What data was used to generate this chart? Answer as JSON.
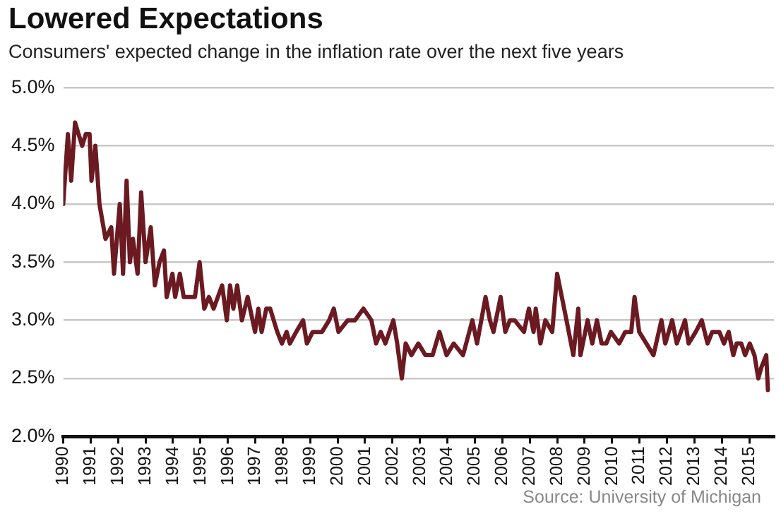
{
  "chart_data": {
    "type": "line",
    "title": "Lowered Expectations",
    "subtitle": "Consumers' expected change in the inflation rate over the next five years",
    "annotations": [
      "Source: University of Michigan"
    ],
    "x": [
      1990,
      1990.17,
      1990.29,
      1990.43,
      1990.69,
      1990.82,
      1990.96,
      1991.03,
      1991.17,
      1991.32,
      1991.54,
      1991.75,
      1991.85,
      1992.06,
      1992.18,
      1992.31,
      1992.43,
      1992.54,
      1992.71,
      1992.84,
      1993.0,
      1993.19,
      1993.34,
      1993.51,
      1993.67,
      1993.77,
      1993.98,
      1994.08,
      1994.25,
      1994.39,
      1994.52,
      1994.8,
      1994.97,
      1995.14,
      1995.31,
      1995.48,
      1995.79,
      1995.96,
      1996.08,
      1996.2,
      1996.34,
      1996.51,
      1996.72,
      1996.99,
      1997.11,
      1997.23,
      1997.4,
      1997.54,
      1997.8,
      1997.97,
      1998.14,
      1998.26,
      1998.49,
      1998.74,
      1998.88,
      1999.09,
      1999.43,
      1999.69,
      1999.86,
      2000.03,
      2000.37,
      2000.63,
      2000.94,
      2001.23,
      2001.4,
      2001.57,
      2001.74,
      2002.03,
      2002.17,
      2002.34,
      2002.48,
      2002.69,
      2002.94,
      2003.2,
      2003.46,
      2003.71,
      2003.97,
      2004.23,
      2004.57,
      2004.91,
      2005.08,
      2005.39,
      2005.55,
      2005.68,
      2005.94,
      2006.11,
      2006.28,
      2006.45,
      2006.79,
      2006.97,
      2007.14,
      2007.22,
      2007.39,
      2007.57,
      2007.82,
      2008.0,
      2008.17,
      2008.34,
      2008.59,
      2008.77,
      2008.85,
      2009.11,
      2009.28,
      2009.45,
      2009.62,
      2009.79,
      2009.96,
      2010.26,
      2010.48,
      2010.7,
      2010.82,
      2010.99,
      2011.25,
      2011.51,
      2011.8,
      2011.94,
      2012.19,
      2012.36,
      2012.66,
      2012.79,
      2013.05,
      2013.27,
      2013.48,
      2013.65,
      2013.91,
      2014.08,
      2014.25,
      2014.42,
      2014.54,
      2014.71,
      2014.85,
      2015.02,
      2015.19,
      2015.33,
      2015.45,
      2015.62,
      2015.68
    ],
    "values": [
      4.0,
      4.6,
      4.2,
      4.7,
      4.5,
      4.6,
      4.6,
      4.2,
      4.5,
      4.0,
      3.7,
      3.8,
      3.4,
      4.0,
      3.4,
      4.2,
      3.5,
      3.7,
      3.4,
      4.1,
      3.5,
      3.8,
      3.3,
      3.5,
      3.6,
      3.2,
      3.4,
      3.2,
      3.4,
      3.2,
      3.2,
      3.2,
      3.5,
      3.1,
      3.2,
      3.1,
      3.3,
      3.0,
      3.3,
      3.1,
      3.3,
      3.0,
      3.2,
      2.9,
      3.1,
      2.9,
      3.1,
      3.1,
      2.9,
      2.8,
      2.9,
      2.8,
      2.9,
      3.0,
      2.8,
      2.9,
      2.9,
      3.0,
      3.1,
      2.9,
      3.0,
      3.0,
      3.1,
      3.0,
      2.8,
      2.9,
      2.8,
      3.0,
      2.8,
      2.5,
      2.8,
      2.7,
      2.8,
      2.7,
      2.7,
      2.9,
      2.7,
      2.8,
      2.7,
      3.0,
      2.8,
      3.2,
      3.0,
      2.9,
      3.2,
      2.9,
      3.0,
      3.0,
      2.9,
      3.1,
      2.9,
      3.1,
      2.8,
      3.0,
      2.9,
      3.4,
      3.2,
      3.0,
      2.7,
      3.1,
      2.7,
      3.0,
      2.8,
      3.0,
      2.8,
      2.8,
      2.9,
      2.8,
      2.9,
      2.9,
      3.2,
      2.9,
      2.8,
      2.7,
      3.0,
      2.8,
      3.0,
      2.8,
      3.0,
      2.8,
      2.9,
      3.0,
      2.8,
      2.9,
      2.9,
      2.8,
      2.9,
      2.7,
      2.8,
      2.8,
      2.7,
      2.8,
      2.7,
      2.5,
      2.6,
      2.7,
      2.4
    ],
    "color": "#6b1a22",
    "line_style": "solid",
    "marker": "none",
    "grid": "y",
    "xlim": [
      1990,
      2015.9
    ],
    "xticks": [
      1990,
      1991,
      1992,
      1993,
      1994,
      1995,
      1996,
      1997,
      1998,
      1999,
      2000,
      2001,
      2002,
      2003,
      2004,
      2005,
      2006,
      2007,
      2008,
      2009,
      2010,
      2011,
      2012,
      2013,
      2014,
      2015
    ],
    "ylim": [
      2.0,
      5.0
    ],
    "yticks": [
      {
        "value": 2.0,
        "label": "2.0%"
      },
      {
        "value": 2.5,
        "label": "2.5%"
      },
      {
        "value": 3.0,
        "label": "3.0%"
      },
      {
        "value": 3.5,
        "label": "3.5%"
      },
      {
        "value": 4.0,
        "label": "4.0%"
      },
      {
        "value": 4.5,
        "label": "4.5%"
      },
      {
        "value": 5.0,
        "label": "5.0%"
      }
    ]
  }
}
